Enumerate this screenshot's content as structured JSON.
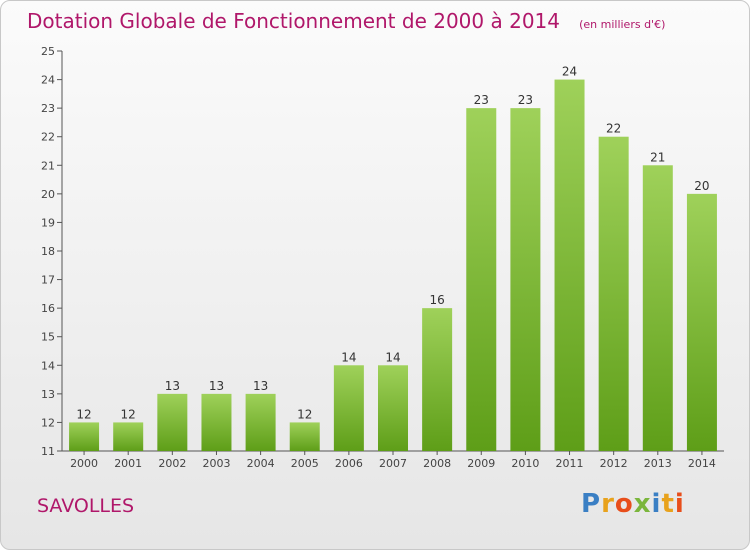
{
  "chart_data": {
    "type": "bar",
    "title": "Dotation Globale de Fonctionnement de 2000 à 2014",
    "unit": "(en milliers d'€)",
    "categories": [
      "2000",
      "2001",
      "2002",
      "2003",
      "2004",
      "2005",
      "2006",
      "2007",
      "2008",
      "2009",
      "2010",
      "2011",
      "2012",
      "2013",
      "2014"
    ],
    "values": [
      12,
      12,
      13,
      13,
      13,
      12,
      14,
      14,
      16,
      23,
      23,
      24,
      22,
      21,
      20
    ],
    "ylim": [
      11,
      25
    ],
    "yticks": [
      11,
      12,
      13,
      14,
      15,
      16,
      17,
      18,
      19,
      20,
      21,
      22,
      23,
      24,
      25
    ],
    "grid": false,
    "bar_color_top": "#9fd15a",
    "bar_color_bottom": "#5e9e18"
  },
  "commune": "SAVOLLES",
  "logo": {
    "text": "Proxiti",
    "letter_colors": [
      "#3a7fc4",
      "#e8a21c",
      "#e84e1b",
      "#7bb63c",
      "#3a7fc4",
      "#e8a21c",
      "#e84e1b"
    ]
  },
  "colors": {
    "title": "#b0176a",
    "axis": "#555555"
  }
}
